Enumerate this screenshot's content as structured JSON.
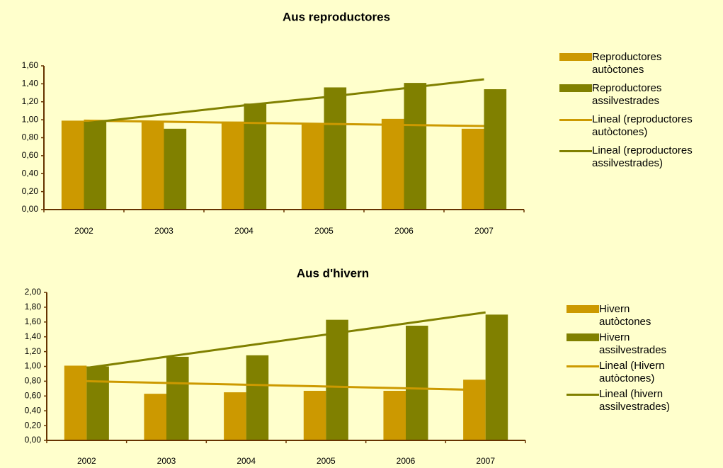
{
  "chart_data": [
    {
      "type": "bar",
      "title": "Aus reproductores",
      "categories": [
        "2002",
        "2003",
        "2004",
        "2005",
        "2006",
        "2007"
      ],
      "ylim": [
        0,
        1.6
      ],
      "yticks": [
        {
          "value": 0,
          "label": "0,00"
        },
        {
          "value": 0.2,
          "label": "0,20"
        },
        {
          "value": 0.4,
          "label": "0,40"
        },
        {
          "value": 0.6,
          "label": "0,60"
        },
        {
          "value": 0.8,
          "label": "0,80"
        },
        {
          "value": 1.0,
          "label": "1,00"
        },
        {
          "value": 1.2,
          "label": "1,20"
        },
        {
          "value": 1.4,
          "label": "1,40"
        },
        {
          "value": 1.6,
          "label": "1,60"
        }
      ],
      "series": [
        {
          "name": "Reproductores\nautòctones",
          "type": "bar",
          "color": "#cc9900",
          "values": [
            0.99,
            0.97,
            0.98,
            0.96,
            1.01,
            0.9
          ]
        },
        {
          "name": "Reproductores\nassilvestrades",
          "type": "bar",
          "color": "#808000",
          "values": [
            0.98,
            0.9,
            1.18,
            1.36,
            1.41,
            1.34
          ]
        },
        {
          "name": "Lineal (reproductores\nautòctones)",
          "type": "line",
          "color": "#cc9900",
          "values": [
            0.99,
            0.978,
            0.966,
            0.954,
            0.942,
            0.93
          ]
        },
        {
          "name": "Lineal (reproductores\nassilvestrades)",
          "type": "line",
          "color": "#808000",
          "values": [
            0.96,
            1.06,
            1.16,
            1.25,
            1.35,
            1.45
          ]
        }
      ]
    },
    {
      "type": "bar",
      "title": "Aus d'hivern",
      "categories": [
        "2002",
        "2003",
        "2004",
        "2005",
        "2006",
        "2007"
      ],
      "ylim": [
        0,
        2.0
      ],
      "yticks": [
        {
          "value": 0,
          "label": "0,00"
        },
        {
          "value": 0.2,
          "label": "0,20"
        },
        {
          "value": 0.4,
          "label": "0,40"
        },
        {
          "value": 0.6,
          "label": "0,60"
        },
        {
          "value": 0.8,
          "label": "0,80"
        },
        {
          "value": 1.0,
          "label": "1,00"
        },
        {
          "value": 1.2,
          "label": "1,20"
        },
        {
          "value": 1.4,
          "label": "1,40"
        },
        {
          "value": 1.6,
          "label": "1,60"
        },
        {
          "value": 1.8,
          "label": "1,80"
        },
        {
          "value": 2.0,
          "label": "2,00"
        }
      ],
      "series": [
        {
          "name": "Hivern\nautòctones",
          "type": "bar",
          "color": "#cc9900",
          "values": [
            1.01,
            0.63,
            0.65,
            0.67,
            0.67,
            0.82
          ]
        },
        {
          "name": "Hivern\nassilvestrades",
          "type": "bar",
          "color": "#808000",
          "values": [
            1.0,
            1.13,
            1.15,
            1.63,
            1.55,
            1.7
          ]
        },
        {
          "name": "Lineal (Hivern\nautòctones)",
          "type": "line",
          "color": "#cc9900",
          "values": [
            0.8,
            0.776,
            0.752,
            0.728,
            0.704,
            0.68
          ]
        },
        {
          "name": "Lineal (hivern\nassilvestrades)",
          "type": "line",
          "color": "#808000",
          "values": [
            0.98,
            1.13,
            1.28,
            1.43,
            1.58,
            1.73
          ]
        }
      ]
    }
  ]
}
